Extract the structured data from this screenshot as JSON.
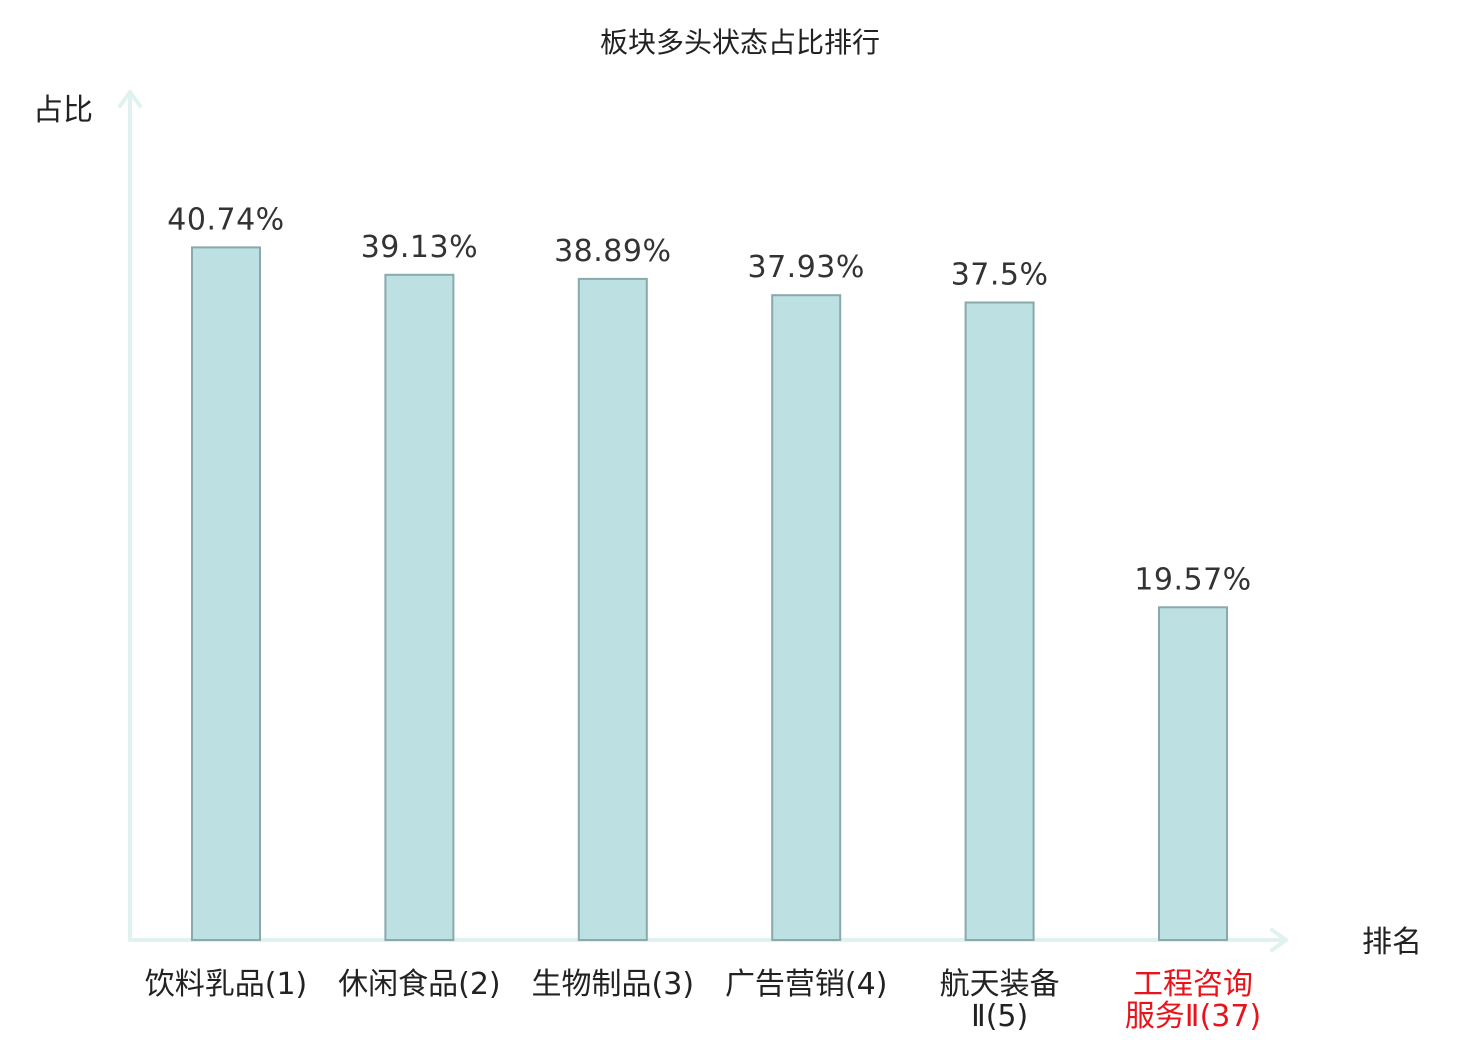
{
  "chart_data": {
    "type": "bar",
    "title": "板块多头状态占比排行",
    "xlabel": "排名",
    "ylabel": "占比",
    "categories": [
      [
        "饮料乳品(1)"
      ],
      [
        "休闲食品(2)"
      ],
      [
        "生物制品(3)"
      ],
      [
        "广告营销(4)"
      ],
      [
        "航天装备",
        "Ⅱ(5)"
      ],
      [
        "工程咨询",
        "服务Ⅱ(37)"
      ]
    ],
    "values": [
      40.74,
      39.13,
      38.89,
      37.93,
      37.5,
      19.57
    ],
    "value_labels": [
      "40.74%",
      "39.13%",
      "38.89%",
      "37.93%",
      "37.5%",
      "19.57%"
    ],
    "ylim": [
      0,
      50
    ],
    "grid": false,
    "highlight_index": 5,
    "colors": {
      "bar_fill": "#bde0e3",
      "bar_stroke": "#8aa9ab",
      "axis": "#dff2ef",
      "label": "#222222",
      "highlight": "#e8141b"
    }
  }
}
